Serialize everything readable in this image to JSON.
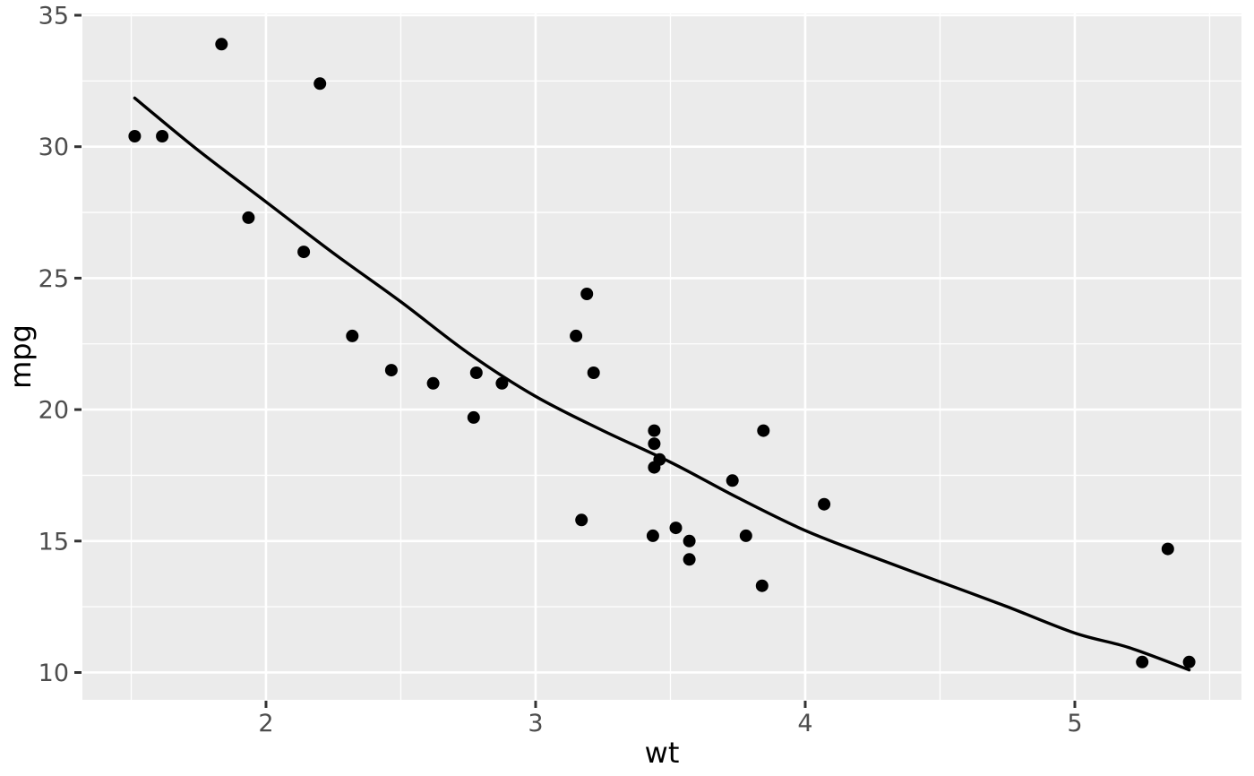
{
  "chart_data": {
    "type": "scatter",
    "title": "",
    "xlabel": "wt",
    "ylabel": "mpg",
    "grid": true,
    "legend": "none",
    "theme": "ggplot-gray",
    "xlim": [
      1.319,
      5.618
    ],
    "ylim": [
      8.96,
      35.068
    ],
    "x_axis": {
      "major_ticks": [
        2,
        3,
        4,
        5
      ],
      "tick_labels": [
        "2",
        "3",
        "4",
        "5"
      ],
      "minor_gridlines": [
        1.5,
        2.5,
        3.5,
        4.5,
        5.5
      ]
    },
    "y_axis": {
      "major_ticks": [
        10,
        15,
        20,
        25,
        30,
        35
      ],
      "tick_labels": [
        "10",
        "15",
        "20",
        "25",
        "30",
        "35"
      ],
      "minor_gridlines": [
        12.5,
        17.5,
        22.5,
        27.5,
        32.5
      ]
    },
    "points": [
      [
        2.62,
        21.0
      ],
      [
        2.875,
        21.0
      ],
      [
        2.32,
        22.8
      ],
      [
        3.215,
        21.4
      ],
      [
        3.44,
        18.7
      ],
      [
        3.46,
        18.1
      ],
      [
        3.57,
        14.3
      ],
      [
        3.19,
        24.4
      ],
      [
        3.15,
        22.8
      ],
      [
        3.44,
        19.2
      ],
      [
        3.44,
        17.8
      ],
      [
        4.07,
        16.4
      ],
      [
        3.73,
        17.3
      ],
      [
        3.78,
        15.2
      ],
      [
        5.25,
        10.4
      ],
      [
        5.424,
        10.4
      ],
      [
        5.345,
        14.7
      ],
      [
        2.2,
        32.4
      ],
      [
        1.615,
        30.4
      ],
      [
        1.835,
        33.9
      ],
      [
        2.465,
        21.5
      ],
      [
        3.52,
        15.5
      ],
      [
        3.435,
        15.2
      ],
      [
        3.84,
        13.3
      ],
      [
        3.845,
        19.2
      ],
      [
        1.935,
        27.3
      ],
      [
        2.14,
        26.0
      ],
      [
        1.513,
        30.4
      ],
      [
        3.17,
        15.8
      ],
      [
        2.77,
        19.7
      ],
      [
        3.57,
        15.0
      ],
      [
        2.78,
        21.4
      ]
    ],
    "smooth_line": {
      "name": "loess-fit",
      "points": [
        [
          1.513,
          31.85
        ],
        [
          1.75,
          29.85
        ],
        [
          2.0,
          27.9
        ],
        [
          2.25,
          25.95
        ],
        [
          2.5,
          24.1
        ],
        [
          2.75,
          22.15
        ],
        [
          3.0,
          20.5
        ],
        [
          3.25,
          19.2
        ],
        [
          3.5,
          18.0
        ],
        [
          3.75,
          16.65
        ],
        [
          4.0,
          15.4
        ],
        [
          4.25,
          14.4
        ],
        [
          4.5,
          13.45
        ],
        [
          4.75,
          12.5
        ],
        [
          5.0,
          11.5
        ],
        [
          5.2,
          10.95
        ],
        [
          5.424,
          10.1
        ]
      ]
    },
    "colors": {
      "outer_background": "#FFFFFF",
      "panel_background": "#EBEBEB",
      "gridline": "#FFFFFF",
      "point": "#000000",
      "smooth_line": "#000000",
      "tick_label": "#4D4D4D",
      "axis_title": "#000000",
      "tick_mark": "#333333"
    }
  }
}
